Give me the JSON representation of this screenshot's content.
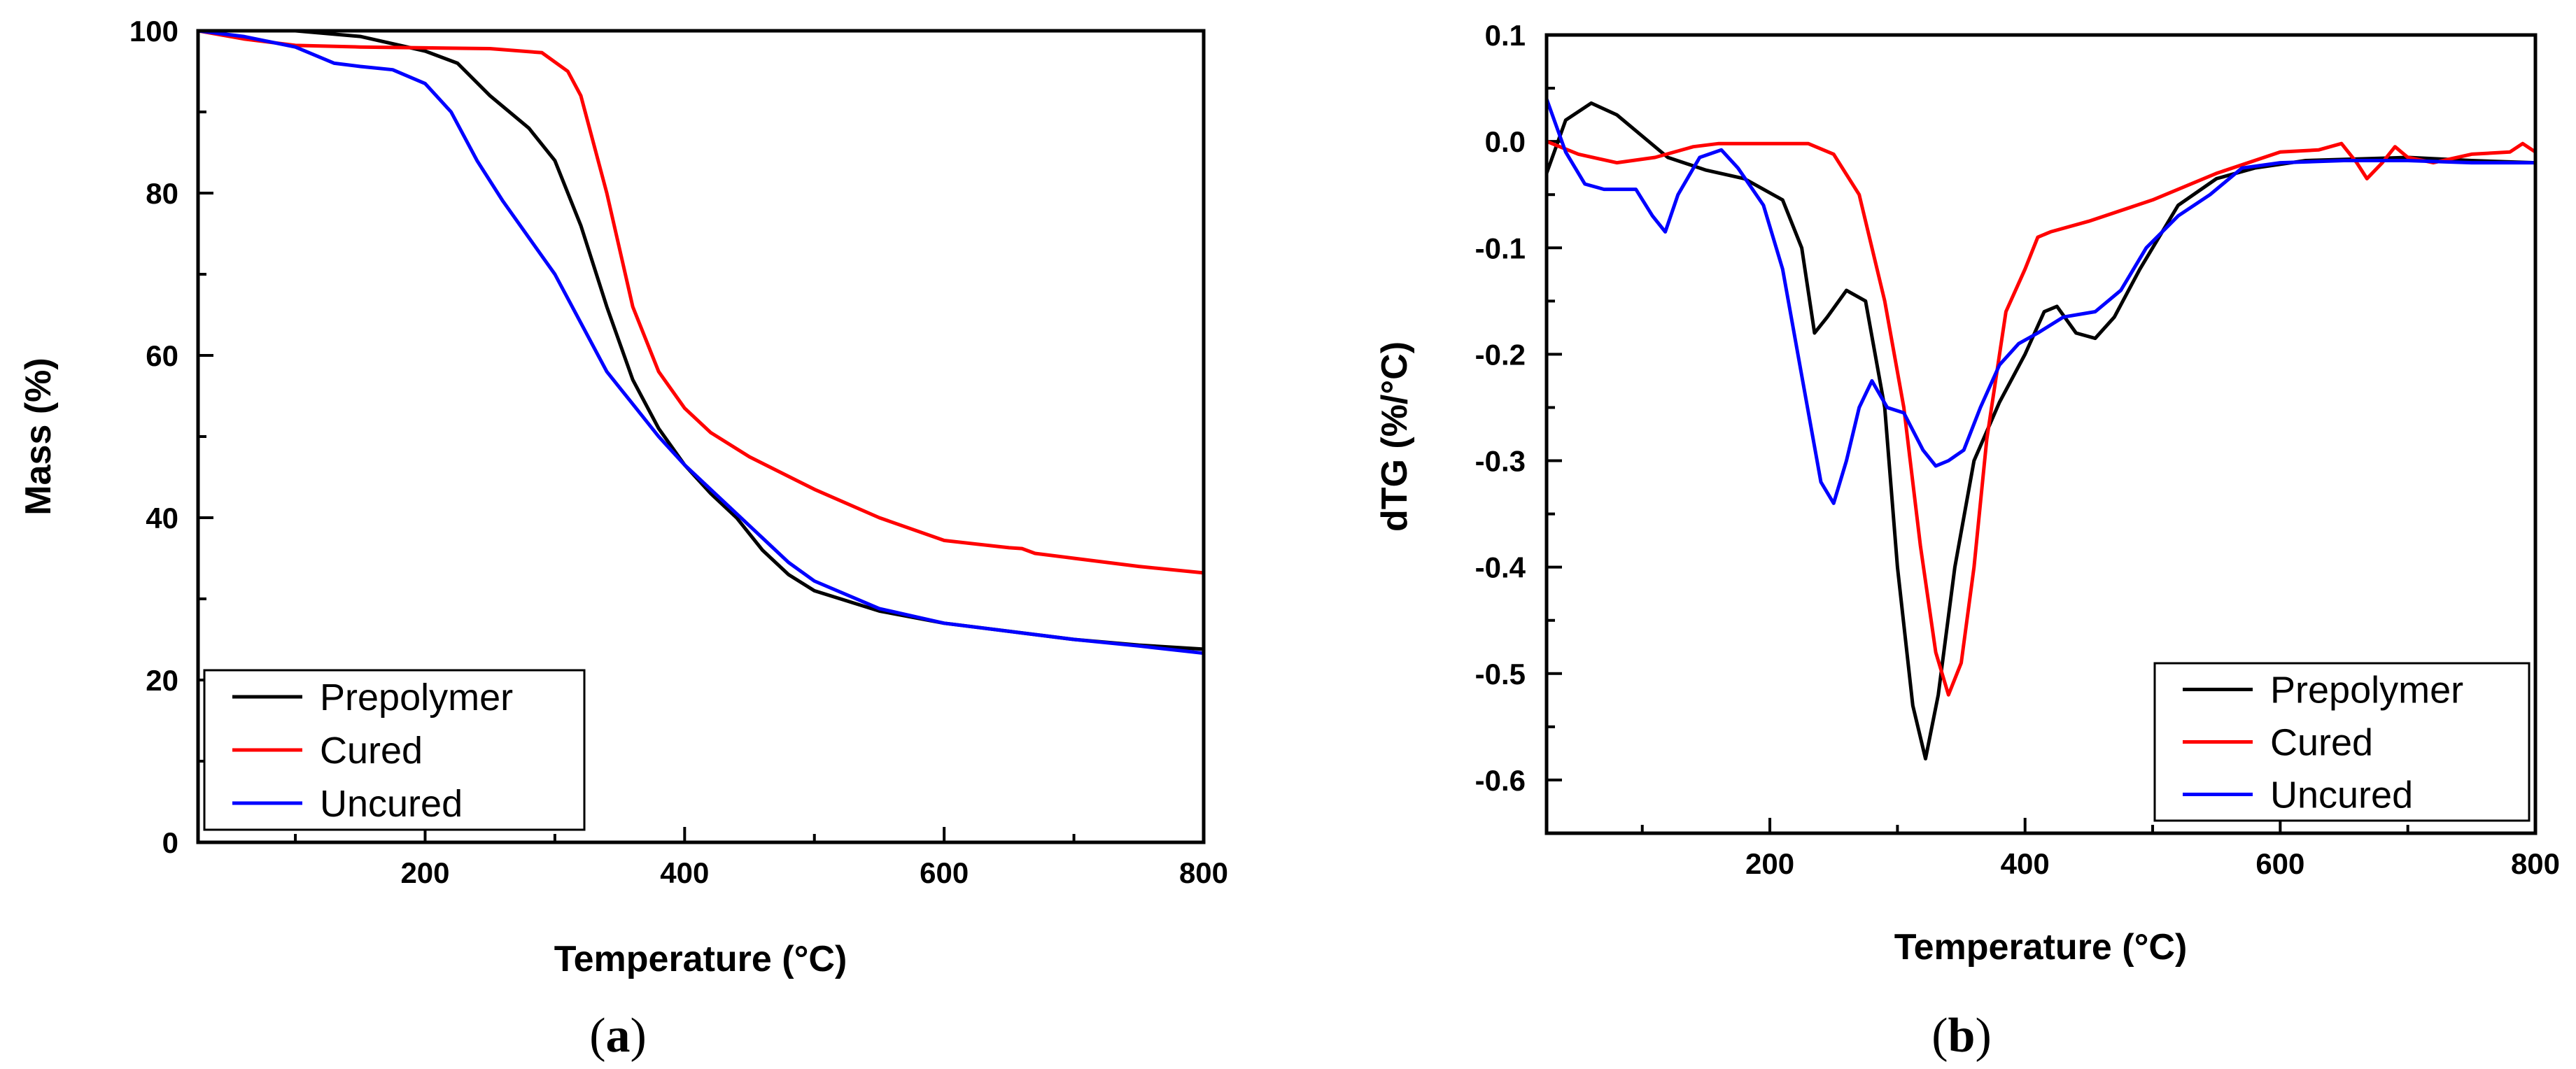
{
  "chart_data": [
    {
      "type": "line",
      "panel_label": "a",
      "xlabel": "Temperature (°C)",
      "ylabel": "Mass (%)",
      "xlim": [
        25,
        800
      ],
      "ylim": [
        0,
        100
      ],
      "xticks": [
        200,
        400,
        600,
        800
      ],
      "xtick_labels": [
        "200",
        "400",
        "600",
        "800"
      ],
      "yticks": [
        0,
        20,
        40,
        60,
        80,
        100
      ],
      "ytick_labels": [
        "0",
        "20",
        "40",
        "60",
        "80",
        "100"
      ],
      "legend_position": "bottom-left",
      "series": [
        {
          "name": "Prepolymer",
          "color": "#000000",
          "points": [
            [
              25,
              100
            ],
            [
              100,
              100
            ],
            [
              150,
              99.3
            ],
            [
              200,
              97.5
            ],
            [
              225,
              96
            ],
            [
              250,
              92
            ],
            [
              280,
              88
            ],
            [
              300,
              84
            ],
            [
              320,
              76
            ],
            [
              340,
              66
            ],
            [
              360,
              57
            ],
            [
              380,
              51
            ],
            [
              400,
              46.5
            ],
            [
              420,
              43
            ],
            [
              440,
              40
            ],
            [
              460,
              36
            ],
            [
              480,
              33
            ],
            [
              500,
              31
            ],
            [
              550,
              28.5
            ],
            [
              600,
              27
            ],
            [
              650,
              26
            ],
            [
              700,
              25
            ],
            [
              750,
              24.3
            ],
            [
              800,
              23.8
            ]
          ]
        },
        {
          "name": "Cured",
          "color": "#ff0000",
          "points": [
            [
              25,
              100
            ],
            [
              60,
              99
            ],
            [
              100,
              98.2
            ],
            [
              150,
              98
            ],
            [
              200,
              97.9
            ],
            [
              250,
              97.8
            ],
            [
              290,
              97.3
            ],
            [
              310,
              95
            ],
            [
              320,
              92
            ],
            [
              340,
              80
            ],
            [
              360,
              66
            ],
            [
              380,
              58
            ],
            [
              400,
              53.5
            ],
            [
              420,
              50.5
            ],
            [
              450,
              47.5
            ],
            [
              500,
              43.5
            ],
            [
              550,
              40
            ],
            [
              600,
              37.2
            ],
            [
              650,
              36.3
            ],
            [
              660,
              36.2
            ],
            [
              670,
              35.6
            ],
            [
              700,
              35
            ],
            [
              750,
              34
            ],
            [
              800,
              33.2
            ]
          ]
        },
        {
          "name": "Uncured",
          "color": "#0000ff",
          "points": [
            [
              25,
              100
            ],
            [
              60,
              99.3
            ],
            [
              100,
              98
            ],
            [
              130,
              96
            ],
            [
              150,
              95.6
            ],
            [
              175,
              95.2
            ],
            [
              200,
              93.5
            ],
            [
              220,
              90
            ],
            [
              240,
              84
            ],
            [
              260,
              79
            ],
            [
              280,
              74.5
            ],
            [
              300,
              70
            ],
            [
              320,
              64
            ],
            [
              340,
              58
            ],
            [
              360,
              54
            ],
            [
              380,
              50
            ],
            [
              400,
              46.5
            ],
            [
              420,
              43.5
            ],
            [
              440,
              40.5
            ],
            [
              460,
              37.5
            ],
            [
              480,
              34.5
            ],
            [
              500,
              32.2
            ],
            [
              550,
              28.8
            ],
            [
              600,
              27
            ],
            [
              650,
              26
            ],
            [
              700,
              25
            ],
            [
              750,
              24.2
            ],
            [
              800,
              23.3
            ]
          ]
        }
      ]
    },
    {
      "type": "line",
      "panel_label": "b",
      "xlabel": "Temperature (°C)",
      "ylabel": "dTG (%/°C)",
      "xlim": [
        25,
        800
      ],
      "ylim": [
        -0.65,
        0.1
      ],
      "xticks": [
        200,
        400,
        600,
        800
      ],
      "xtick_labels": [
        "200",
        "400",
        "600",
        "800"
      ],
      "yticks": [
        0.1,
        0.0,
        -0.1,
        -0.2,
        -0.3,
        -0.4,
        -0.5,
        -0.6
      ],
      "ytick_labels": [
        "0.1",
        "0.0",
        "-0.1",
        "-0.2",
        "-0.3",
        "-0.4",
        "-0.5",
        "-0.6"
      ],
      "legend_position": "bottom-right",
      "series": [
        {
          "name": "Prepolymer",
          "color": "#000000",
          "points": [
            [
              25,
              -0.03
            ],
            [
              40,
              0.02
            ],
            [
              60,
              0.036
            ],
            [
              80,
              0.025
            ],
            [
              100,
              0.005
            ],
            [
              120,
              -0.015
            ],
            [
              150,
              -0.027
            ],
            [
              180,
              -0.035
            ],
            [
              210,
              -0.055
            ],
            [
              225,
              -0.1
            ],
            [
              235,
              -0.18
            ],
            [
              245,
              -0.165
            ],
            [
              260,
              -0.14
            ],
            [
              275,
              -0.15
            ],
            [
              290,
              -0.25
            ],
            [
              300,
              -0.4
            ],
            [
              312,
              -0.53
            ],
            [
              322,
              -0.58
            ],
            [
              332,
              -0.52
            ],
            [
              345,
              -0.4
            ],
            [
              360,
              -0.3
            ],
            [
              380,
              -0.245
            ],
            [
              400,
              -0.2
            ],
            [
              415,
              -0.16
            ],
            [
              425,
              -0.155
            ],
            [
              440,
              -0.18
            ],
            [
              455,
              -0.185
            ],
            [
              470,
              -0.165
            ],
            [
              490,
              -0.12
            ],
            [
              520,
              -0.06
            ],
            [
              550,
              -0.035
            ],
            [
              580,
              -0.025
            ],
            [
              620,
              -0.018
            ],
            [
              700,
              -0.015
            ],
            [
              750,
              -0.018
            ],
            [
              800,
              -0.02
            ]
          ]
        },
        {
          "name": "Cured",
          "color": "#ff0000",
          "points": [
            [
              25,
              0.0
            ],
            [
              50,
              -0.012
            ],
            [
              80,
              -0.02
            ],
            [
              110,
              -0.015
            ],
            [
              140,
              -0.005
            ],
            [
              160,
              -0.002
            ],
            [
              200,
              -0.002
            ],
            [
              230,
              -0.002
            ],
            [
              250,
              -0.012
            ],
            [
              270,
              -0.05
            ],
            [
              290,
              -0.15
            ],
            [
              305,
              -0.25
            ],
            [
              318,
              -0.38
            ],
            [
              330,
              -0.48
            ],
            [
              340,
              -0.52
            ],
            [
              350,
              -0.49
            ],
            [
              360,
              -0.4
            ],
            [
              370,
              -0.28
            ],
            [
              385,
              -0.16
            ],
            [
              400,
              -0.12
            ],
            [
              410,
              -0.09
            ],
            [
              420,
              -0.085
            ],
            [
              450,
              -0.075
            ],
            [
              500,
              -0.055
            ],
            [
              550,
              -0.03
            ],
            [
              600,
              -0.01
            ],
            [
              630,
              -0.008
            ],
            [
              648,
              -0.002
            ],
            [
              660,
              -0.02
            ],
            [
              668,
              -0.035
            ],
            [
              680,
              -0.02
            ],
            [
              690,
              -0.005
            ],
            [
              700,
              -0.015
            ],
            [
              720,
              -0.02
            ],
            [
              750,
              -0.012
            ],
            [
              780,
              -0.01
            ],
            [
              790,
              -0.002
            ],
            [
              800,
              -0.01
            ]
          ]
        },
        {
          "name": "Uncured",
          "color": "#0000ff",
          "points": [
            [
              25,
              0.04
            ],
            [
              40,
              -0.01
            ],
            [
              55,
              -0.04
            ],
            [
              70,
              -0.045
            ],
            [
              95,
              -0.045
            ],
            [
              108,
              -0.07
            ],
            [
              118,
              -0.085
            ],
            [
              128,
              -0.05
            ],
            [
              145,
              -0.015
            ],
            [
              162,
              -0.008
            ],
            [
              175,
              -0.025
            ],
            [
              195,
              -0.06
            ],
            [
              210,
              -0.12
            ],
            [
              225,
              -0.22
            ],
            [
              240,
              -0.32
            ],
            [
              250,
              -0.34
            ],
            [
              260,
              -0.3
            ],
            [
              270,
              -0.25
            ],
            [
              280,
              -0.225
            ],
            [
              292,
              -0.25
            ],
            [
              305,
              -0.255
            ],
            [
              320,
              -0.29
            ],
            [
              330,
              -0.305
            ],
            [
              340,
              -0.3
            ],
            [
              352,
              -0.29
            ],
            [
              365,
              -0.25
            ],
            [
              380,
              -0.21
            ],
            [
              395,
              -0.19
            ],
            [
              410,
              -0.18
            ],
            [
              430,
              -0.165
            ],
            [
              455,
              -0.16
            ],
            [
              475,
              -0.14
            ],
            [
              495,
              -0.1
            ],
            [
              520,
              -0.07
            ],
            [
              545,
              -0.05
            ],
            [
              570,
              -0.025
            ],
            [
              600,
              -0.02
            ],
            [
              650,
              -0.018
            ],
            [
              700,
              -0.018
            ],
            [
              750,
              -0.02
            ],
            [
              800,
              -0.02
            ]
          ]
        }
      ]
    }
  ]
}
